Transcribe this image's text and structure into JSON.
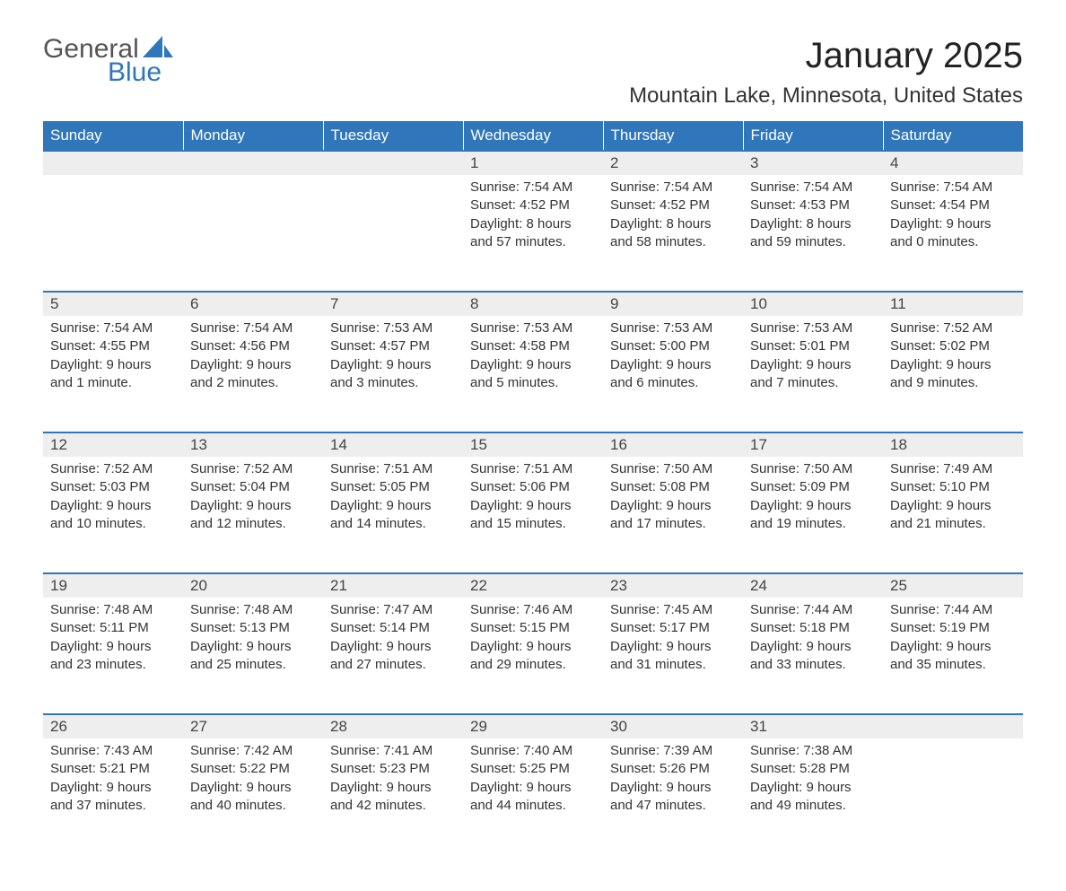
{
  "logo": {
    "word1": "General",
    "word2": "Blue"
  },
  "title": "January 2025",
  "location": "Mountain Lake, Minnesota, United States",
  "colors": {
    "header_bg": "#2f76bb",
    "header_text": "#ffffff",
    "daynum_bg": "#eeeeee",
    "body_text": "#333333",
    "logo_gray": "#555555",
    "logo_blue": "#2f76bb",
    "page_bg": "#ffffff"
  },
  "day_names": [
    "Sunday",
    "Monday",
    "Tuesday",
    "Wednesday",
    "Thursday",
    "Friday",
    "Saturday"
  ],
  "weeks": [
    [
      null,
      null,
      null,
      {
        "num": "1",
        "sunrise": "Sunrise: 7:54 AM",
        "sunset": "Sunset: 4:52 PM",
        "daylight1": "Daylight: 8 hours",
        "daylight2": "and 57 minutes."
      },
      {
        "num": "2",
        "sunrise": "Sunrise: 7:54 AM",
        "sunset": "Sunset: 4:52 PM",
        "daylight1": "Daylight: 8 hours",
        "daylight2": "and 58 minutes."
      },
      {
        "num": "3",
        "sunrise": "Sunrise: 7:54 AM",
        "sunset": "Sunset: 4:53 PM",
        "daylight1": "Daylight: 8 hours",
        "daylight2": "and 59 minutes."
      },
      {
        "num": "4",
        "sunrise": "Sunrise: 7:54 AM",
        "sunset": "Sunset: 4:54 PM",
        "daylight1": "Daylight: 9 hours",
        "daylight2": "and 0 minutes."
      }
    ],
    [
      {
        "num": "5",
        "sunrise": "Sunrise: 7:54 AM",
        "sunset": "Sunset: 4:55 PM",
        "daylight1": "Daylight: 9 hours",
        "daylight2": "and 1 minute."
      },
      {
        "num": "6",
        "sunrise": "Sunrise: 7:54 AM",
        "sunset": "Sunset: 4:56 PM",
        "daylight1": "Daylight: 9 hours",
        "daylight2": "and 2 minutes."
      },
      {
        "num": "7",
        "sunrise": "Sunrise: 7:53 AM",
        "sunset": "Sunset: 4:57 PM",
        "daylight1": "Daylight: 9 hours",
        "daylight2": "and 3 minutes."
      },
      {
        "num": "8",
        "sunrise": "Sunrise: 7:53 AM",
        "sunset": "Sunset: 4:58 PM",
        "daylight1": "Daylight: 9 hours",
        "daylight2": "and 5 minutes."
      },
      {
        "num": "9",
        "sunrise": "Sunrise: 7:53 AM",
        "sunset": "Sunset: 5:00 PM",
        "daylight1": "Daylight: 9 hours",
        "daylight2": "and 6 minutes."
      },
      {
        "num": "10",
        "sunrise": "Sunrise: 7:53 AM",
        "sunset": "Sunset: 5:01 PM",
        "daylight1": "Daylight: 9 hours",
        "daylight2": "and 7 minutes."
      },
      {
        "num": "11",
        "sunrise": "Sunrise: 7:52 AM",
        "sunset": "Sunset: 5:02 PM",
        "daylight1": "Daylight: 9 hours",
        "daylight2": "and 9 minutes."
      }
    ],
    [
      {
        "num": "12",
        "sunrise": "Sunrise: 7:52 AM",
        "sunset": "Sunset: 5:03 PM",
        "daylight1": "Daylight: 9 hours",
        "daylight2": "and 10 minutes."
      },
      {
        "num": "13",
        "sunrise": "Sunrise: 7:52 AM",
        "sunset": "Sunset: 5:04 PM",
        "daylight1": "Daylight: 9 hours",
        "daylight2": "and 12 minutes."
      },
      {
        "num": "14",
        "sunrise": "Sunrise: 7:51 AM",
        "sunset": "Sunset: 5:05 PM",
        "daylight1": "Daylight: 9 hours",
        "daylight2": "and 14 minutes."
      },
      {
        "num": "15",
        "sunrise": "Sunrise: 7:51 AM",
        "sunset": "Sunset: 5:06 PM",
        "daylight1": "Daylight: 9 hours",
        "daylight2": "and 15 minutes."
      },
      {
        "num": "16",
        "sunrise": "Sunrise: 7:50 AM",
        "sunset": "Sunset: 5:08 PM",
        "daylight1": "Daylight: 9 hours",
        "daylight2": "and 17 minutes."
      },
      {
        "num": "17",
        "sunrise": "Sunrise: 7:50 AM",
        "sunset": "Sunset: 5:09 PM",
        "daylight1": "Daylight: 9 hours",
        "daylight2": "and 19 minutes."
      },
      {
        "num": "18",
        "sunrise": "Sunrise: 7:49 AM",
        "sunset": "Sunset: 5:10 PM",
        "daylight1": "Daylight: 9 hours",
        "daylight2": "and 21 minutes."
      }
    ],
    [
      {
        "num": "19",
        "sunrise": "Sunrise: 7:48 AM",
        "sunset": "Sunset: 5:11 PM",
        "daylight1": "Daylight: 9 hours",
        "daylight2": "and 23 minutes."
      },
      {
        "num": "20",
        "sunrise": "Sunrise: 7:48 AM",
        "sunset": "Sunset: 5:13 PM",
        "daylight1": "Daylight: 9 hours",
        "daylight2": "and 25 minutes."
      },
      {
        "num": "21",
        "sunrise": "Sunrise: 7:47 AM",
        "sunset": "Sunset: 5:14 PM",
        "daylight1": "Daylight: 9 hours",
        "daylight2": "and 27 minutes."
      },
      {
        "num": "22",
        "sunrise": "Sunrise: 7:46 AM",
        "sunset": "Sunset: 5:15 PM",
        "daylight1": "Daylight: 9 hours",
        "daylight2": "and 29 minutes."
      },
      {
        "num": "23",
        "sunrise": "Sunrise: 7:45 AM",
        "sunset": "Sunset: 5:17 PM",
        "daylight1": "Daylight: 9 hours",
        "daylight2": "and 31 minutes."
      },
      {
        "num": "24",
        "sunrise": "Sunrise: 7:44 AM",
        "sunset": "Sunset: 5:18 PM",
        "daylight1": "Daylight: 9 hours",
        "daylight2": "and 33 minutes."
      },
      {
        "num": "25",
        "sunrise": "Sunrise: 7:44 AM",
        "sunset": "Sunset: 5:19 PM",
        "daylight1": "Daylight: 9 hours",
        "daylight2": "and 35 minutes."
      }
    ],
    [
      {
        "num": "26",
        "sunrise": "Sunrise: 7:43 AM",
        "sunset": "Sunset: 5:21 PM",
        "daylight1": "Daylight: 9 hours",
        "daylight2": "and 37 minutes."
      },
      {
        "num": "27",
        "sunrise": "Sunrise: 7:42 AM",
        "sunset": "Sunset: 5:22 PM",
        "daylight1": "Daylight: 9 hours",
        "daylight2": "and 40 minutes."
      },
      {
        "num": "28",
        "sunrise": "Sunrise: 7:41 AM",
        "sunset": "Sunset: 5:23 PM",
        "daylight1": "Daylight: 9 hours",
        "daylight2": "and 42 minutes."
      },
      {
        "num": "29",
        "sunrise": "Sunrise: 7:40 AM",
        "sunset": "Sunset: 5:25 PM",
        "daylight1": "Daylight: 9 hours",
        "daylight2": "and 44 minutes."
      },
      {
        "num": "30",
        "sunrise": "Sunrise: 7:39 AM",
        "sunset": "Sunset: 5:26 PM",
        "daylight1": "Daylight: 9 hours",
        "daylight2": "and 47 minutes."
      },
      {
        "num": "31",
        "sunrise": "Sunrise: 7:38 AM",
        "sunset": "Sunset: 5:28 PM",
        "daylight1": "Daylight: 9 hours",
        "daylight2": "and 49 minutes."
      },
      null
    ]
  ]
}
